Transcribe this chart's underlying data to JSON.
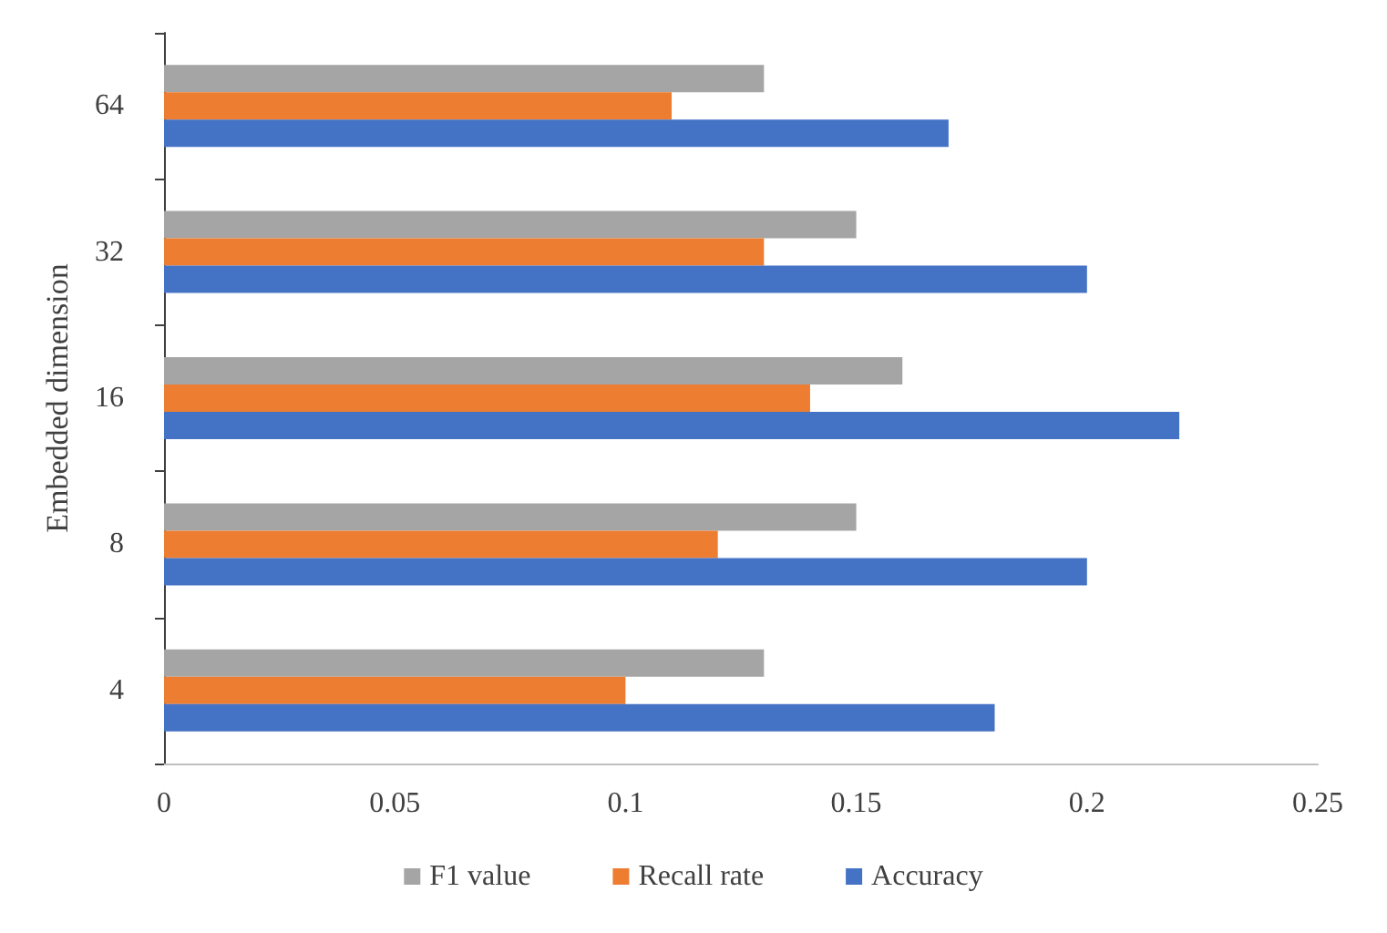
{
  "chart_data": {
    "type": "bar",
    "orientation": "horizontal",
    "ylabel": "Embedded dimension",
    "categories": [
      "64",
      "32",
      "16",
      "8",
      "4"
    ],
    "series": [
      {
        "name": "F1 value",
        "color": "#a5a5a5",
        "values": [
          0.13,
          0.15,
          0.16,
          0.15,
          0.13
        ]
      },
      {
        "name": "Recall rate",
        "color": "#ed7d31",
        "values": [
          0.11,
          0.13,
          0.14,
          0.12,
          0.1
        ]
      },
      {
        "name": "Accuracy",
        "color": "#4472c4",
        "values": [
          0.17,
          0.2,
          0.22,
          0.2,
          0.18
        ]
      }
    ],
    "xlim": [
      0,
      0.25
    ],
    "xticks": [
      0,
      0.05,
      0.1,
      0.15,
      0.2,
      0.25
    ],
    "grid": false,
    "legend": "bottom"
  }
}
